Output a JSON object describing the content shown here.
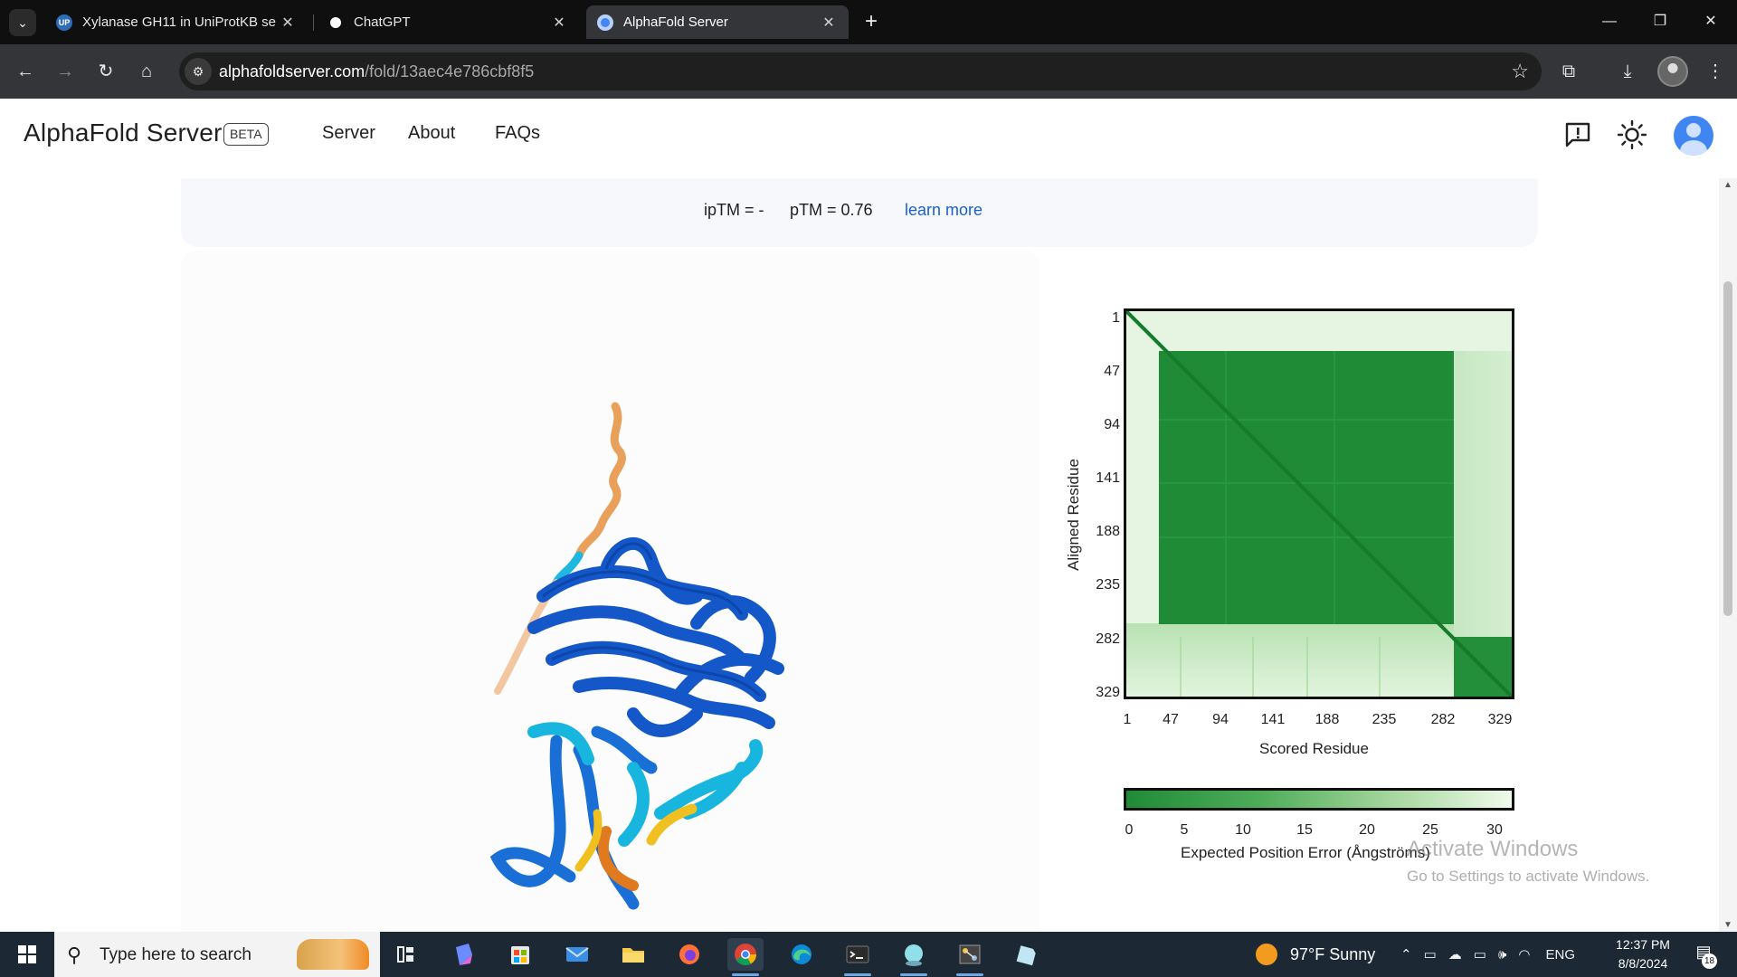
{
  "browser": {
    "tabs": [
      {
        "title": "Xylanase GH11 in UniProtKB se",
        "close": "✕",
        "favicon_color": "#2f6db6",
        "active": false
      },
      {
        "title": "ChatGPT",
        "close": "✕",
        "favicon_color": "#ffffff",
        "active": false
      },
      {
        "title": "AlphaFold Server",
        "close": "✕",
        "favicon_color": "#4285f4",
        "active": true
      }
    ],
    "new_tab": "+",
    "address": {
      "host": "alphafoldserver.com",
      "path": "/fold/13aec4e786cbf8f5"
    },
    "window_controls": {
      "minimize": "—",
      "restore": "❐",
      "close": "✕"
    }
  },
  "header": {
    "brand": "AlphaFold Server",
    "badge": "BETA",
    "nav": [
      "Server",
      "About",
      "FAQs"
    ]
  },
  "scores": {
    "iptm": "ipTM = -",
    "ptm": "pTM = 0.76",
    "learn_more": "learn more"
  },
  "pae_plot": {
    "y_ticks": [
      "1",
      "47",
      "94",
      "141",
      "188",
      "235",
      "282",
      "329"
    ],
    "x_ticks": [
      "1",
      "47",
      "94",
      "141",
      "188",
      "235",
      "282",
      "329"
    ],
    "ylabel": "Aligned Residue",
    "xlabel": "Scored Residue",
    "colorbar_ticks": [
      "0",
      "5",
      "10",
      "15",
      "20",
      "25",
      "30"
    ],
    "colorbar_label": "Expected Position Error (Ångströms)",
    "low_error_color": "#1f8b37",
    "high_error_color": "#effaeb"
  },
  "watermark": {
    "line1": "Activate Windows",
    "line2": "Go to Settings to activate Windows."
  },
  "taskbar": {
    "search_placeholder": "Type here to search",
    "weather": "97°F  Sunny",
    "language": "ENG",
    "time": "12:37 PM",
    "date": "8/8/2024",
    "notifications": "18"
  }
}
